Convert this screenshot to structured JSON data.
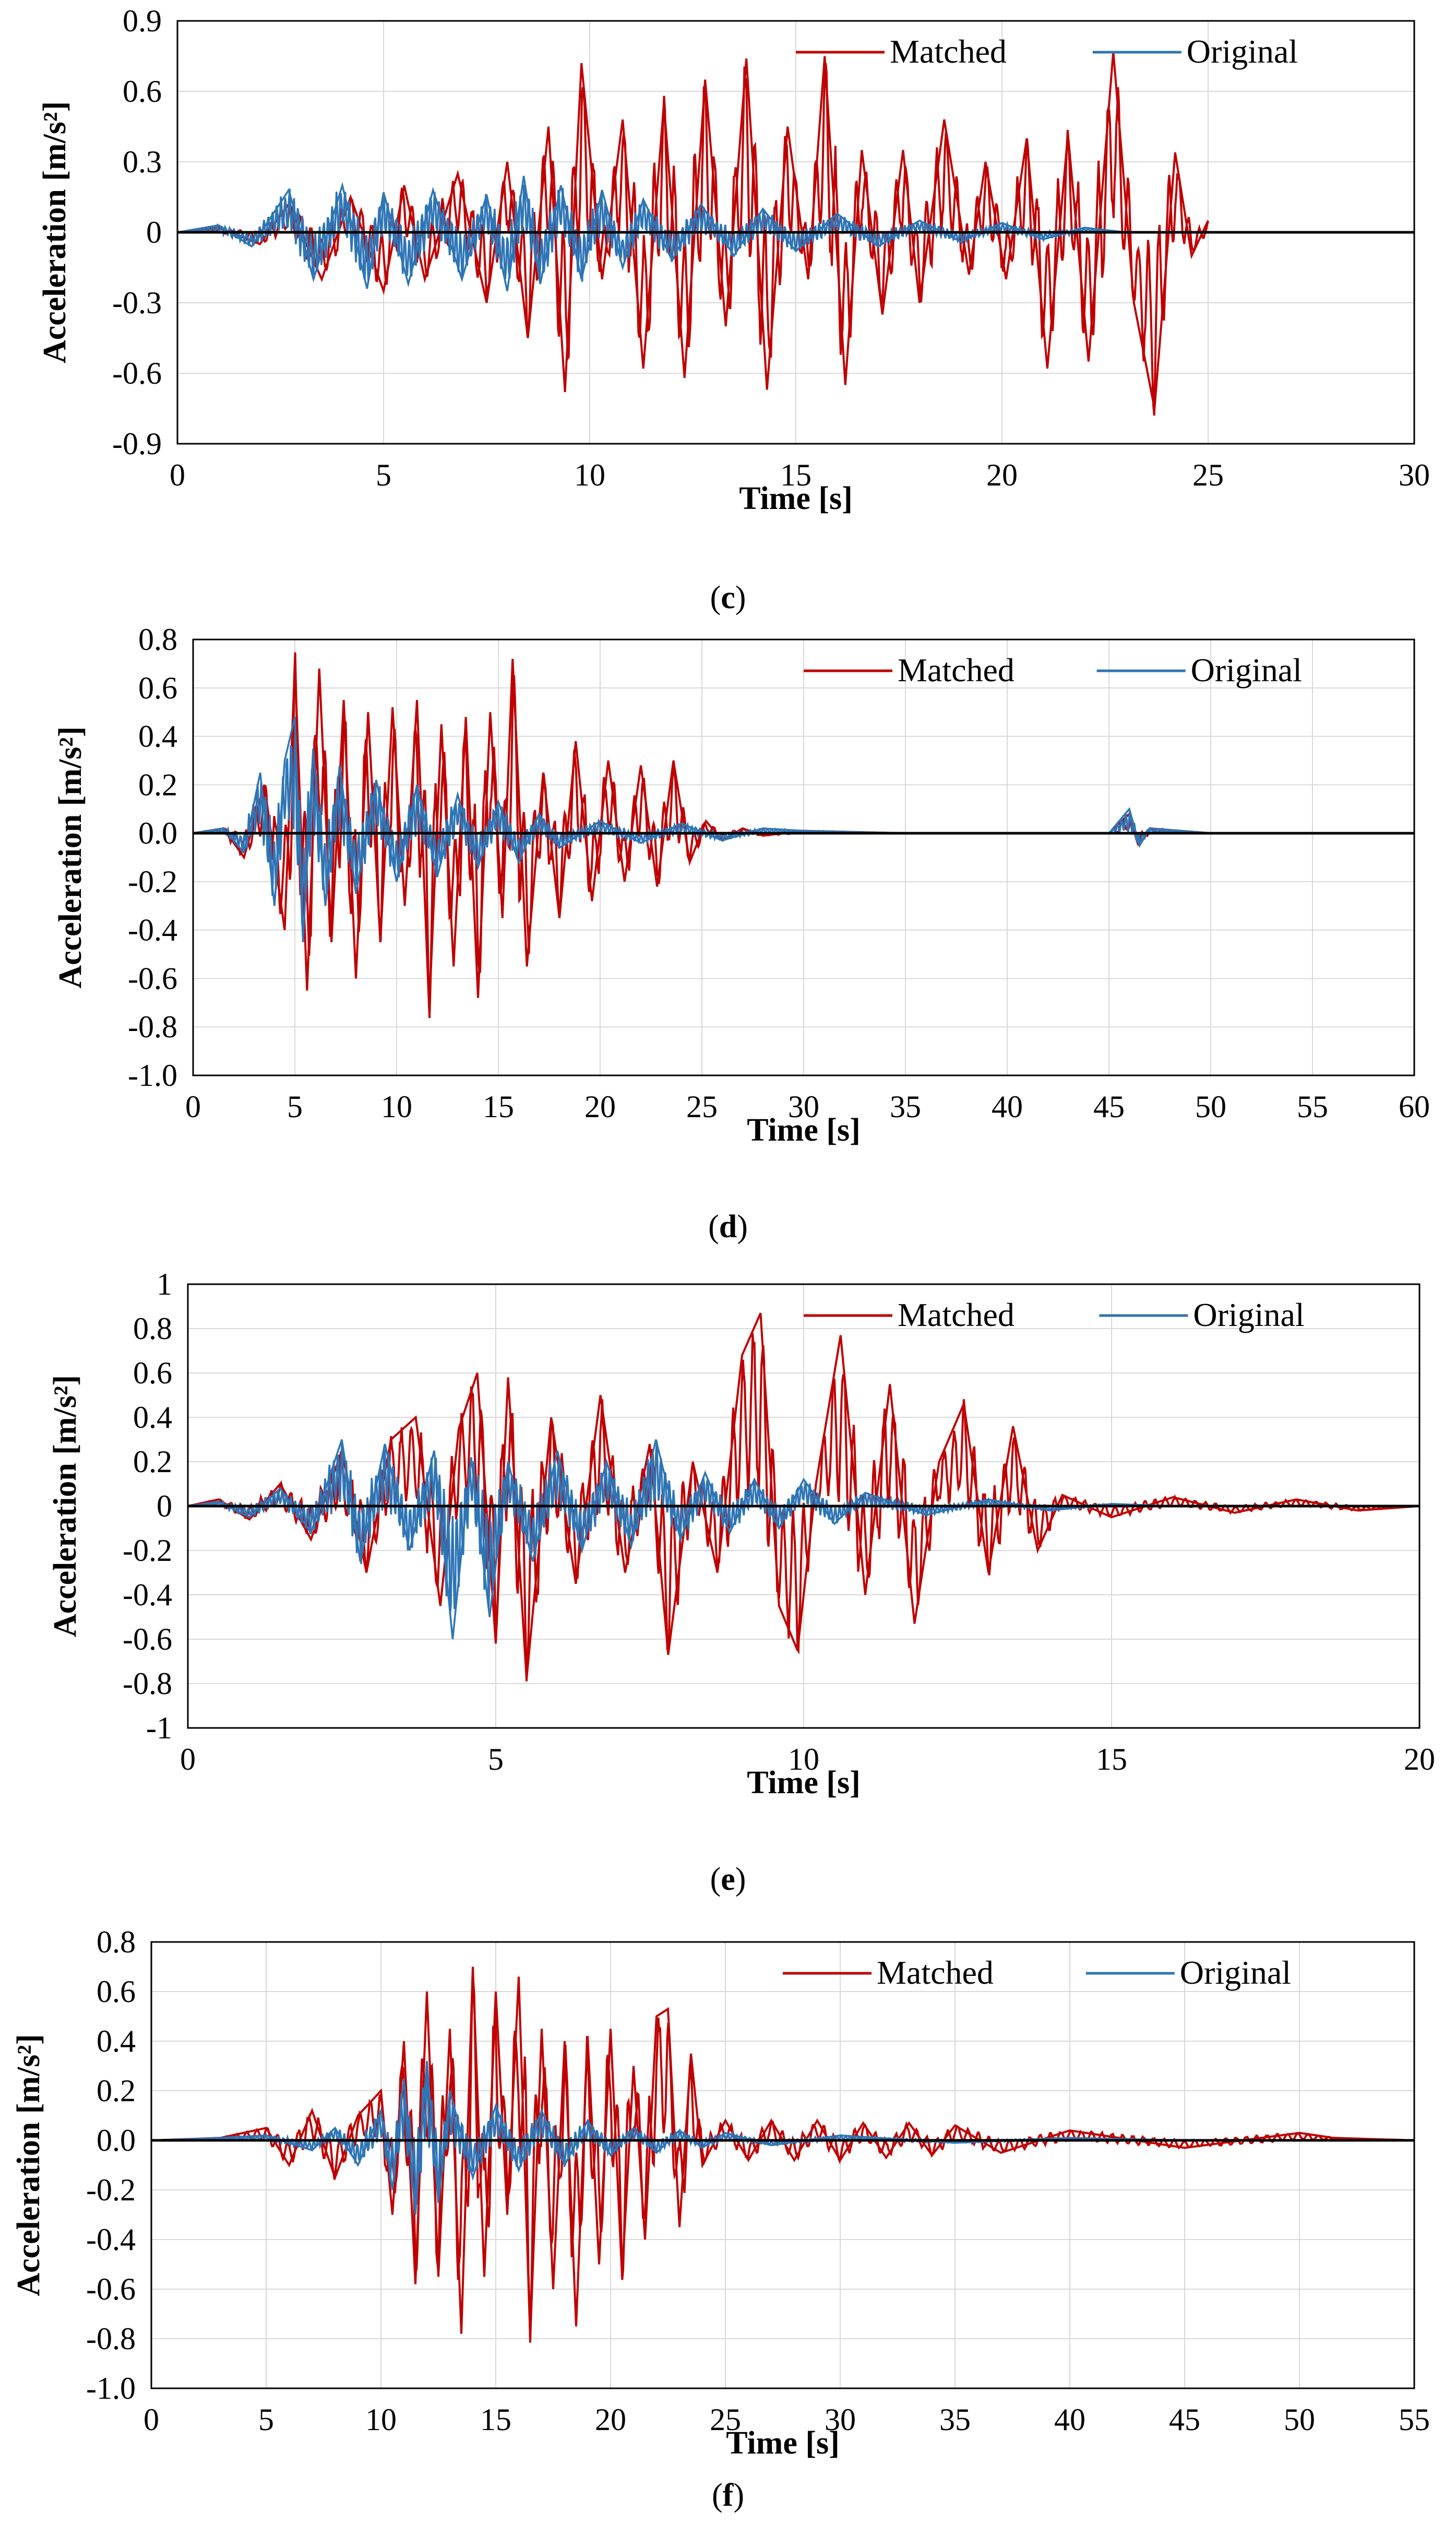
{
  "colors": {
    "matched": "#c00000",
    "original": "#2e75b6",
    "zero_line": "#000000",
    "grid": "#d9d9d9"
  },
  "chart_data": [
    {
      "type": "line",
      "panel": "c",
      "caption": {
        "open": "(",
        "letter": "c",
        "close": ")"
      },
      "xlabel": "Time [s]",
      "ylabel": "Acceleration [m/s²]",
      "xlim": [
        0,
        30
      ],
      "ylim": [
        -0.9,
        0.9
      ],
      "xticks": [
        0,
        5,
        10,
        15,
        20,
        25,
        30
      ],
      "xtick_labels": [
        "0",
        "5",
        "10",
        "15",
        "20",
        "25",
        "30"
      ],
      "yticks": [
        0.9,
        0.6,
        0.3,
        0,
        -0.3,
        -0.6,
        -0.9
      ],
      "ytick_labels": [
        "0.9",
        "0.6",
        "0.3",
        "0",
        "-0.3",
        "-0.6",
        "-0.9"
      ],
      "legend": {
        "position": "top-right",
        "entries": [
          "Matched",
          "Original"
        ]
      },
      "series": [
        {
          "name": "Matched",
          "x": [
            0,
            1,
            2,
            2.7,
            3.5,
            4.2,
            5,
            5.5,
            6,
            6.8,
            7.5,
            8,
            8.5,
            9,
            9.4,
            9.8,
            10.3,
            10.8,
            11.3,
            11.8,
            12.3,
            12.8,
            13.3,
            13.8,
            14.3,
            14.8,
            15.3,
            15.7,
            16.2,
            16.6,
            17.1,
            17.6,
            18,
            18.6,
            19.2,
            19.6,
            20.1,
            20.6,
            21.1,
            21.6,
            22.1,
            22.7,
            23.2,
            23.7,
            24.2,
            24.6,
            25
          ],
          "y": [
            0,
            0.02,
            -0.05,
            0.12,
            -0.2,
            0.15,
            -0.25,
            0.2,
            -0.2,
            0.25,
            -0.3,
            0.3,
            -0.45,
            0.45,
            -0.68,
            0.72,
            -0.2,
            0.48,
            -0.58,
            0.55,
            -0.62,
            0.65,
            -0.4,
            0.74,
            -0.67,
            0.45,
            -0.2,
            0.75,
            -0.65,
            0.35,
            -0.35,
            0.35,
            -0.3,
            0.48,
            -0.18,
            0.3,
            -0.2,
            0.4,
            -0.58,
            0.42,
            -0.55,
            0.77,
            -0.3,
            -0.75,
            0.34,
            -0.1,
            0.05
          ]
        },
        {
          "name": "Original",
          "x": [
            0,
            1,
            1.8,
            2.7,
            3.3,
            4,
            4.6,
            5,
            5.6,
            6.2,
            6.9,
            7.5,
            8,
            8.4,
            8.8,
            9.3,
            9.8,
            10.3,
            10.8,
            11.3,
            12,
            12.7,
            13.5,
            14.2,
            15,
            16,
            17,
            18,
            19,
            20,
            21,
            22,
            23
          ],
          "y": [
            0,
            0.03,
            -0.06,
            0.18,
            -0.2,
            0.2,
            -0.24,
            0.17,
            -0.22,
            0.18,
            -0.2,
            0.16,
            -0.25,
            0.24,
            -0.22,
            0.2,
            -0.2,
            0.18,
            -0.15,
            0.14,
            -0.12,
            0.12,
            -0.1,
            0.1,
            -0.08,
            0.08,
            -0.06,
            0.05,
            -0.04,
            0.04,
            -0.03,
            0.02,
            0
          ]
        }
      ]
    },
    {
      "type": "line",
      "panel": "d",
      "caption": {
        "open": "(",
        "letter": "d",
        "close": ")"
      },
      "xlabel": "Time [s]",
      "ylabel": "Acceleration [m/s²]",
      "xlim": [
        0,
        60
      ],
      "ylim": [
        -1.0,
        0.8
      ],
      "xticks": [
        0,
        5,
        10,
        15,
        20,
        25,
        30,
        35,
        40,
        45,
        50,
        55,
        60
      ],
      "xtick_labels": [
        "0",
        "5",
        "10",
        "15",
        "20",
        "25",
        "30",
        "35",
        "40",
        "45",
        "50",
        "55",
        "60"
      ],
      "yticks": [
        0.8,
        0.6,
        0.4,
        0.2,
        0.0,
        -0.2,
        -0.4,
        -0.6,
        -0.8,
        -1.0
      ],
      "ytick_labels": [
        "0.8",
        "0.6",
        "0.4",
        "0.2",
        "0.0",
        "-0.2",
        "-0.4",
        "-0.6",
        "-0.8",
        "-1.0"
      ],
      "legend": {
        "position": "top-right",
        "entries": [
          "Matched",
          "Original"
        ]
      },
      "series": [
        {
          "name": "Matched",
          "x": [
            0,
            1.5,
            2.5,
            3.5,
            4.5,
            5,
            5.6,
            6.2,
            6.8,
            7.4,
            8,
            8.6,
            9.2,
            9.8,
            10.4,
            11,
            11.6,
            12.2,
            12.8,
            13.4,
            14,
            14.6,
            15.2,
            15.7,
            16.4,
            17.2,
            18,
            18.8,
            19.6,
            20.4,
            21.2,
            22,
            22.8,
            23.6,
            24.4,
            25.2,
            26,
            27,
            28,
            30,
            35,
            40,
            45,
            46,
            46.5,
            47,
            50,
            55,
            60
          ],
          "y": [
            0,
            0.02,
            -0.1,
            0.2,
            -0.4,
            0.7,
            -0.65,
            0.68,
            -0.45,
            0.55,
            -0.6,
            0.5,
            -0.45,
            0.52,
            -0.3,
            0.55,
            -0.73,
            0.45,
            -0.55,
            0.48,
            -0.68,
            0.5,
            -0.35,
            0.72,
            -0.55,
            0.25,
            -0.35,
            0.38,
            -0.28,
            0.3,
            -0.2,
            0.28,
            -0.22,
            0.3,
            -0.12,
            0.05,
            -0.03,
            0.02,
            -0.01,
            0.01,
            0,
            0,
            0,
            0.08,
            -0.05,
            0.02,
            0,
            0,
            0
          ]
        },
        {
          "name": "Original",
          "x": [
            0,
            1.5,
            2.5,
            3.3,
            4,
            4.5,
            5,
            5.4,
            5.9,
            6.5,
            7.2,
            8,
            9,
            10,
            11,
            12,
            13,
            14,
            15,
            16,
            17,
            18,
            20,
            22,
            24,
            26,
            28,
            30,
            35,
            40,
            45,
            46,
            46.5,
            47,
            50,
            55,
            60
          ],
          "y": [
            0,
            0.02,
            -0.08,
            0.25,
            -0.3,
            0.3,
            0.48,
            -0.45,
            0.35,
            -0.3,
            0.28,
            -0.25,
            0.22,
            -0.2,
            0.2,
            -0.18,
            0.16,
            -0.14,
            0.13,
            -0.12,
            0.08,
            -0.06,
            0.05,
            -0.04,
            0.04,
            -0.03,
            0.02,
            0.01,
            0,
            0,
            0,
            0.1,
            -0.05,
            0.02,
            0,
            0,
            0
          ]
        }
      ]
    },
    {
      "type": "line",
      "panel": "e",
      "caption": {
        "open": "(",
        "letter": "e",
        "close": ")"
      },
      "xlabel": "Time [s]",
      "ylabel": "Acceleration [m/s²]",
      "xlim": [
        0,
        20
      ],
      "ylim": [
        -1,
        1
      ],
      "xticks": [
        0,
        5,
        10,
        15,
        20
      ],
      "xtick_labels": [
        "0",
        "5",
        "10",
        "15",
        "20"
      ],
      "yticks": [
        1,
        0.8,
        0.6,
        0.4,
        0.2,
        0,
        -0.2,
        -0.4,
        -0.6,
        -0.8,
        -1
      ],
      "ytick_labels": [
        "1",
        "0.8",
        "0.6",
        "0.4",
        "0.2",
        "0",
        "-0.2",
        "-0.4",
        "-0.6",
        "-0.8",
        "-1"
      ],
      "legend": {
        "position": "top-right",
        "entries": [
          "Matched",
          "Original"
        ]
      },
      "series": [
        {
          "name": "Matched",
          "x": [
            0,
            0.5,
            1,
            1.5,
            2,
            2.5,
            2.9,
            3.3,
            3.7,
            4.1,
            4.4,
            4.7,
            5,
            5.2,
            5.5,
            5.9,
            6.3,
            6.7,
            7.1,
            7.5,
            7.8,
            8.2,
            8.6,
            9,
            9.3,
            9.6,
            9.9,
            10.2,
            10.6,
            11,
            11.4,
            11.8,
            12.2,
            12.6,
            13,
            13.4,
            13.8,
            14.2,
            15,
            16,
            17,
            18,
            19,
            20
          ],
          "y": [
            0,
            0.03,
            -0.06,
            0.1,
            -0.15,
            0.25,
            -0.3,
            0.3,
            0.4,
            -0.45,
            0.35,
            0.6,
            -0.62,
            0.58,
            -0.78,
            0.4,
            -0.35,
            0.5,
            -0.3,
            0.28,
            -0.67,
            0.2,
            -0.3,
            0.68,
            0.87,
            -0.45,
            -0.65,
            0.1,
            0.77,
            -0.4,
            0.55,
            -0.53,
            0.2,
            0.46,
            -0.3,
            0.36,
            -0.2,
            0.05,
            -0.05,
            0.04,
            -0.03,
            0.03,
            -0.02,
            0
          ]
        },
        {
          "name": "Original",
          "x": [
            0,
            0.5,
            1,
            1.5,
            2,
            2.5,
            2.8,
            3.2,
            3.6,
            4,
            4.3,
            4.6,
            4.9,
            5.2,
            5.6,
            6,
            6.4,
            6.8,
            7.2,
            7.6,
            8,
            8.4,
            8.8,
            9.2,
            9.6,
            10,
            10.5,
            11,
            12,
            13,
            14,
            15,
            16,
            20
          ],
          "y": [
            0,
            0.02,
            -0.05,
            0.08,
            -0.12,
            0.3,
            -0.25,
            0.28,
            -0.2,
            0.25,
            -0.6,
            0.22,
            -0.5,
            0.2,
            -0.25,
            0.25,
            -0.2,
            0.2,
            -0.18,
            0.3,
            -0.15,
            0.15,
            -0.12,
            0.12,
            -0.1,
            0.12,
            -0.08,
            0.06,
            -0.04,
            0.03,
            -0.02,
            0.01,
            0,
            0
          ]
        }
      ]
    },
    {
      "type": "line",
      "panel": "f",
      "caption": {
        "open": "(",
        "letter": "f",
        "close": ")"
      },
      "xlabel": "Time [s]",
      "ylabel": "Acceleration [m/s²]",
      "xlim": [
        0,
        55
      ],
      "ylim": [
        -1.0,
        0.8
      ],
      "xticks": [
        0,
        5,
        10,
        15,
        20,
        25,
        30,
        35,
        40,
        45,
        50,
        55
      ],
      "xtick_labels": [
        "0",
        "5",
        "10",
        "15",
        "20",
        "25",
        "30",
        "35",
        "40",
        "45",
        "50",
        "55"
      ],
      "yticks": [
        0.8,
        0.6,
        0.4,
        0.2,
        0.0,
        -0.2,
        -0.4,
        -0.6,
        -0.8,
        -1.0
      ],
      "ytick_labels": [
        "0.8",
        "0.6",
        "0.4",
        "0.2",
        "0.0",
        "-0.2",
        "-0.4",
        "-0.6",
        "-0.8",
        "-1.0"
      ],
      "legend": {
        "position": "top-right",
        "entries": [
          "Matched",
          "Original"
        ]
      },
      "series": [
        {
          "name": "Matched",
          "x": [
            0,
            3,
            5,
            6,
            7,
            8,
            9,
            10,
            10.5,
            11,
            11.5,
            12,
            12.5,
            13,
            13.5,
            14,
            14.5,
            15,
            15.5,
            16,
            16.5,
            17,
            17.5,
            18,
            18.5,
            19,
            19.5,
            20,
            20.5,
            21,
            21.5,
            22,
            22.5,
            23,
            23.5,
            24,
            25,
            26,
            27,
            28,
            29,
            30,
            31,
            32,
            33,
            34,
            35,
            37,
            40,
            45,
            50,
            51.5,
            55
          ],
          "y": [
            0,
            0.01,
            0.05,
            -0.1,
            0.12,
            -0.15,
            0.1,
            0.2,
            -0.3,
            0.4,
            -0.58,
            0.6,
            -0.55,
            0.45,
            -0.78,
            0.7,
            -0.55,
            0.6,
            -0.3,
            0.66,
            -0.8,
            0.45,
            -0.6,
            0.4,
            -0.75,
            0.42,
            -0.5,
            0.45,
            -0.55,
            0.3,
            -0.4,
            0.5,
            0.53,
            -0.35,
            0.35,
            -0.1,
            0.08,
            -0.08,
            0.08,
            -0.08,
            0.08,
            -0.08,
            0.07,
            -0.07,
            0.07,
            -0.06,
            0.06,
            -0.05,
            0.04,
            -0.03,
            0.03,
            0.01,
            0
          ]
        },
        {
          "name": "Original",
          "x": [
            0,
            3,
            5,
            7,
            8,
            9,
            10,
            10.5,
            11,
            11.5,
            12,
            12.5,
            13,
            14,
            15,
            16,
            17,
            18,
            19,
            20,
            21,
            22,
            23,
            24,
            25,
            27,
            30,
            35,
            40,
            45,
            50,
            55
          ],
          "y": [
            0,
            0.01,
            0.02,
            -0.04,
            0.05,
            -0.1,
            0.12,
            -0.2,
            0.25,
            -0.3,
            0.32,
            -0.25,
            0.2,
            -0.15,
            0.14,
            -0.12,
            0.12,
            -0.1,
            0.08,
            -0.06,
            0.05,
            -0.05,
            0.04,
            -0.03,
            0.03,
            -0.02,
            0.02,
            -0.01,
            0.01,
            0,
            0,
            0
          ]
        }
      ]
    }
  ]
}
